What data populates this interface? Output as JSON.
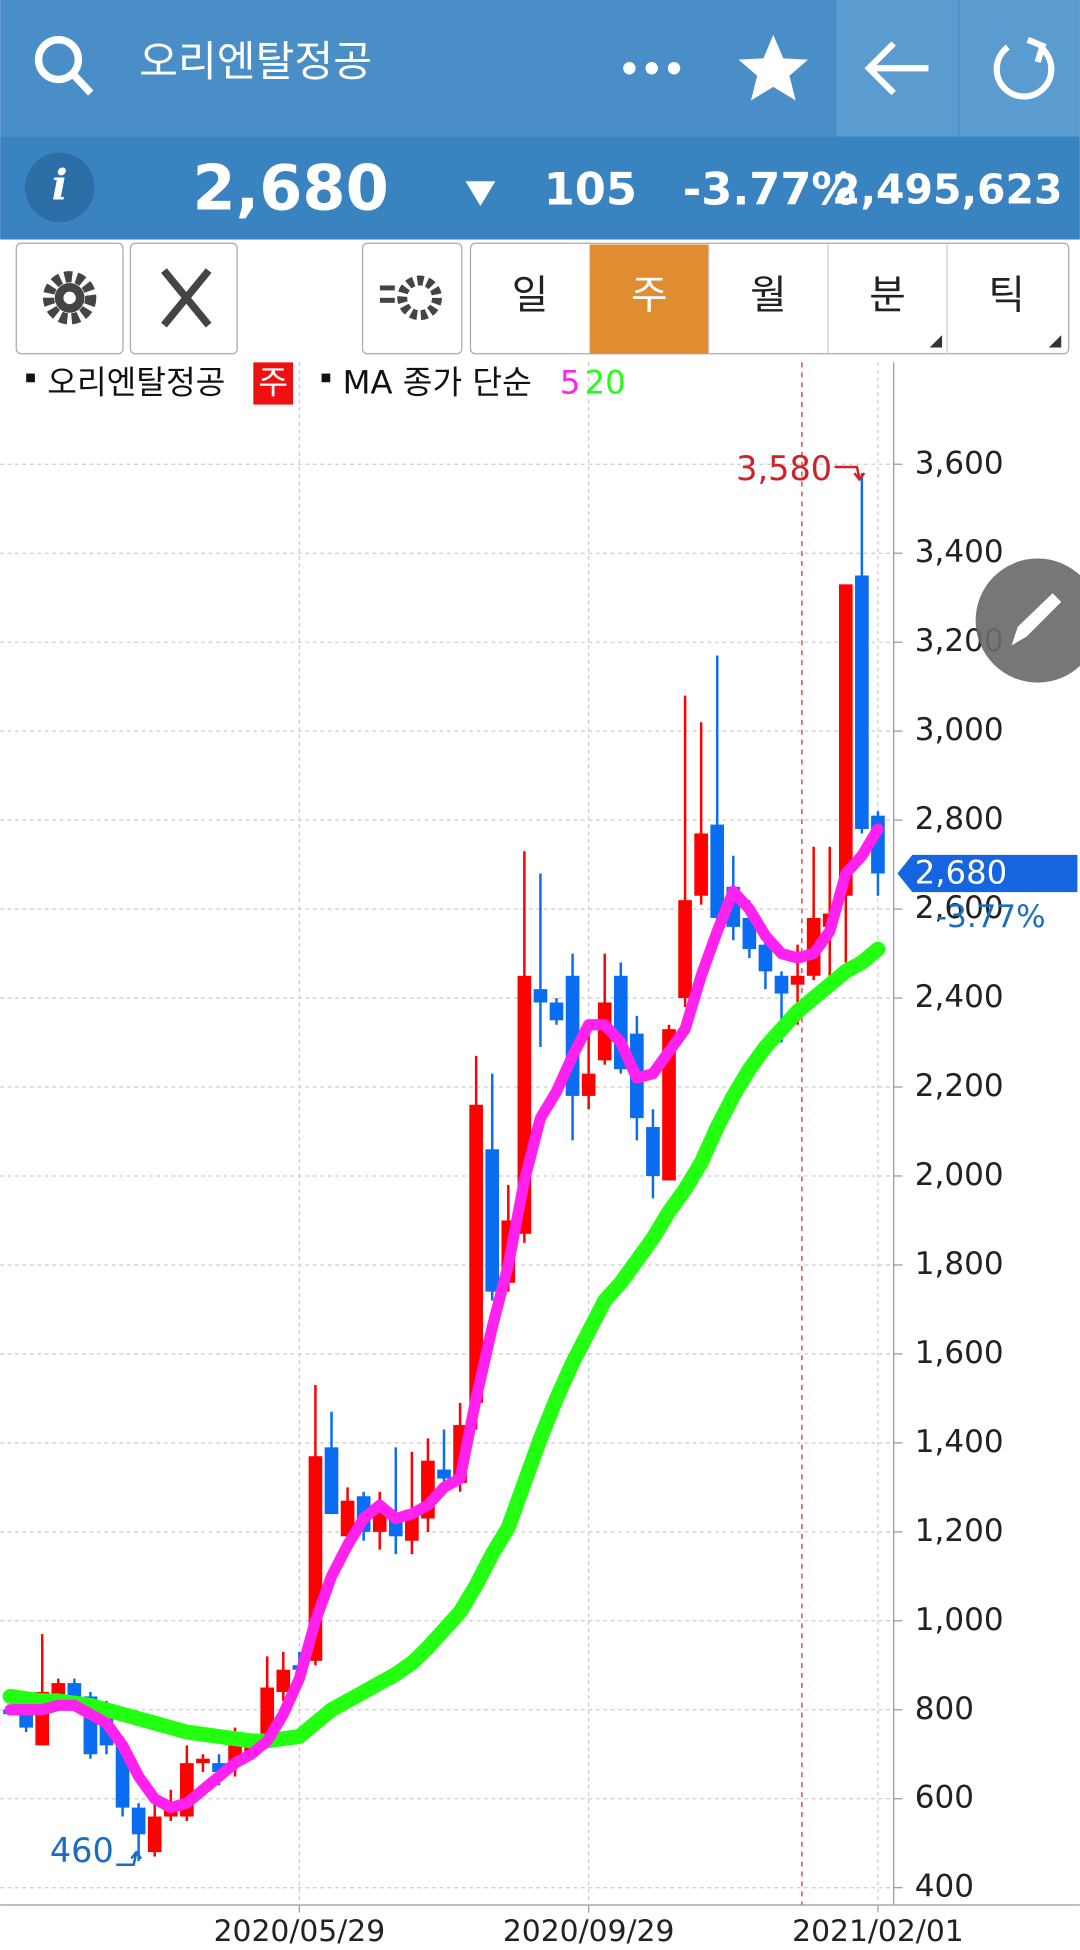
{
  "header": {
    "title": "오리엔탈정공",
    "price": "2,680",
    "change": "105",
    "change_pct": "-3.77%",
    "volume": "2,495,623"
  },
  "tabs": [
    "일",
    "주",
    "월",
    "분",
    "틱"
  ],
  "chart_data": {
    "type": "candlestick",
    "legend": {
      "name": "오리엔탈정공",
      "period": "주",
      "ma_label": "MA 종가 단순"
    },
    "categories": [
      null,
      null,
      null,
      null,
      null,
      null,
      null,
      null,
      null,
      null,
      null,
      null,
      null,
      null,
      null,
      null,
      null,
      null,
      "2020/05/29",
      null,
      null,
      null,
      null,
      null,
      null,
      null,
      null,
      null,
      null,
      null,
      null,
      null,
      null,
      null,
      null,
      null,
      "2020/09/29",
      null,
      null,
      null,
      null,
      null,
      null,
      null,
      null,
      null,
      null,
      null,
      null,
      null,
      null,
      null,
      null,
      null,
      "2021/02/01"
    ],
    "open": [
      800,
      790,
      720,
      830,
      860,
      830,
      800,
      720,
      580,
      480,
      560,
      560,
      680,
      680,
      680,
      700,
      740,
      840,
      900,
      910,
      1390,
      1190,
      1280,
      1200,
      1230,
      1180,
      1230,
      1340,
      1310,
      1490,
      2060,
      1760,
      1870,
      2420,
      2390,
      2450,
      2180,
      2260,
      2450,
      2320,
      2110,
      1990,
      2400,
      2630,
      2790,
      2650,
      2580,
      2520,
      2450,
      2430,
      2450,
      2560,
      2630,
      3350,
      2810
    ],
    "high": [
      810,
      800,
      970,
      870,
      870,
      840,
      820,
      740,
      590,
      600,
      620,
      720,
      700,
      700,
      760,
      730,
      920,
      930,
      930,
      1530,
      1470,
      1300,
      1290,
      1290,
      1390,
      1380,
      1410,
      1430,
      1490,
      2270,
      2230,
      1980,
      2730,
      2680,
      2400,
      2500,
      2350,
      2500,
      2480,
      2360,
      2150,
      2340,
      3080,
      3020,
      3170,
      2720,
      2620,
      2560,
      2460,
      2520,
      2740,
      2740,
      3330,
      3580,
      2820
    ],
    "low": [
      790,
      750,
      720,
      800,
      810,
      690,
      700,
      560,
      460,
      470,
      550,
      550,
      660,
      630,
      650,
      690,
      720,
      820,
      880,
      900,
      1240,
      1160,
      1180,
      1160,
      1150,
      1150,
      1200,
      1300,
      1290,
      1430,
      1720,
      1740,
      1850,
      2290,
      2340,
      2080,
      2150,
      2250,
      2230,
      2080,
      1950,
      1990,
      2380,
      2610,
      2560,
      2530,
      2490,
      2420,
      2300,
      2340,
      2440,
      2410,
      2480,
      2770,
      2630
    ],
    "close": [
      790,
      760,
      840,
      860,
      830,
      700,
      720,
      580,
      520,
      560,
      580,
      680,
      690,
      660,
      720,
      720,
      850,
      890,
      890,
      1370,
      1240,
      1270,
      1200,
      1260,
      1190,
      1250,
      1360,
      1320,
      1440,
      2160,
      1740,
      1900,
      2450,
      2390,
      2350,
      2180,
      2230,
      2390,
      2240,
      2130,
      2000,
      2330,
      2620,
      2770,
      2580,
      2560,
      2510,
      2460,
      2410,
      2450,
      2580,
      2590,
      3330,
      2780,
      2680
    ],
    "up_color": "#ff0000",
    "down_color": "#0a6cf0",
    "series": [
      {
        "name": "5",
        "color": "#ff22ee",
        "values": [
          800,
          800,
          800,
          810,
          810,
          790,
          770,
          720,
          650,
          600,
          580,
          590,
          620,
          650,
          680,
          700,
          730,
          790,
          870,
          1000,
          1100,
          1170,
          1230,
          1260,
          1230,
          1240,
          1260,
          1300,
          1320,
          1500,
          1660,
          1800,
          1990,
          2130,
          2190,
          2270,
          2340,
          2340,
          2300,
          2220,
          2230,
          2280,
          2330,
          2450,
          2550,
          2640,
          2600,
          2540,
          2500,
          2490,
          2500,
          2550,
          2680,
          2720,
          2780
        ]
      },
      {
        "name": "20",
        "color": "#22ff11",
        "values": [
          830,
          825,
          820,
          820,
          815,
          810,
          800,
          790,
          780,
          770,
          760,
          750,
          745,
          740,
          735,
          730,
          730,
          735,
          740,
          770,
          800,
          820,
          840,
          860,
          880,
          905,
          940,
          980,
          1020,
          1080,
          1150,
          1210,
          1310,
          1410,
          1500,
          1580,
          1650,
          1720,
          1760,
          1810,
          1860,
          1920,
          1970,
          2030,
          2110,
          2180,
          2240,
          2290,
          2330,
          2370,
          2400,
          2430,
          2460,
          2480,
          2510
        ]
      }
    ],
    "high_label": "3,580",
    "low_label": "460",
    "ylim": [
      361,
      3829
    ],
    "yticks": [
      400,
      600,
      800,
      {
        "value": 1000,
        "label": "1,000"
      },
      {
        "value": 1200,
        "label": "1,200"
      },
      {
        "value": 1400,
        "label": "1,400"
      },
      {
        "value": 1600,
        "label": "1,600"
      },
      {
        "value": 1800,
        "label": "1,800"
      },
      {
        "value": 2000,
        "label": "2,000"
      },
      {
        "value": 2200,
        "label": "2,200"
      },
      {
        "value": 2400,
        "label": "2,400"
      },
      {
        "value": 2600,
        "label": "2,600"
      },
      {
        "value": 2800,
        "label": "2,800"
      },
      {
        "value": 3000,
        "label": "3,000"
      },
      {
        "value": 3200,
        "label": "3,200"
      },
      {
        "value": 3400,
        "label": "3,400"
      },
      {
        "value": 3600,
        "label": "3,600"
      }
    ],
    "grid": true
  }
}
